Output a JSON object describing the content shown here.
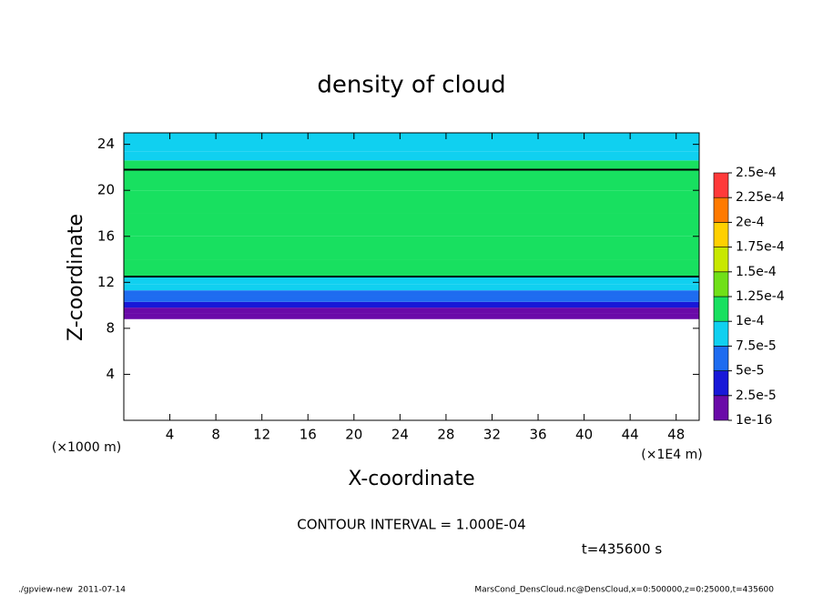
{
  "chart_data": {
    "type": "profile-heatmap",
    "title": "density of cloud",
    "x_label": "X-coordinate",
    "y_label": "Z-coordinate",
    "x_unit": "(×1E4 m)",
    "y_unit": "(×1000 m)",
    "xlim": [
      0,
      50
    ],
    "ylim": [
      0,
      25
    ],
    "xticks": [
      4,
      8,
      12,
      16,
      20,
      24,
      28,
      32,
      36,
      40,
      44,
      48
    ],
    "yticks": [
      4,
      8,
      12,
      16,
      20,
      24
    ],
    "z": [
      8.8,
      9.3,
      9.8,
      10.3,
      10.8,
      11.3,
      11.8,
      12.5,
      14,
      16,
      18,
      20,
      21.8,
      22.6,
      23.4
    ],
    "values": [
      1e-06,
      2e-05,
      4e-05,
      6e-05,
      7e-05,
      8e-05,
      9e-05,
      0.0001,
      0.000105,
      0.00011,
      0.00011,
      0.000108,
      0.0001,
      9e-05,
      8e-05
    ],
    "contour_level": 0.0001,
    "levels": [
      {
        "value": 1e-16,
        "label": "1e-16"
      },
      {
        "value": 2.5e-05,
        "label": "2.5e-5"
      },
      {
        "value": 5e-05,
        "label": "5e-5"
      },
      {
        "value": 7.5e-05,
        "label": "7.5e-5"
      },
      {
        "value": 0.0001,
        "label": "1e-4"
      },
      {
        "value": 0.000125,
        "label": "1.25e-4"
      },
      {
        "value": 0.00015,
        "label": "1.5e-4"
      },
      {
        "value": 0.000175,
        "label": "1.75e-4"
      },
      {
        "value": 0.0002,
        "label": "2e-4"
      },
      {
        "value": 0.000225,
        "label": "2.25e-4"
      },
      {
        "value": 0.00025,
        "label": "2.5e-4"
      }
    ],
    "level_colors": [
      "#6a0aa8",
      "#1818d8",
      "#1e6cf0",
      "#10d0f0",
      "#18e060",
      "#70e018",
      "#c8e800",
      "#ffd000",
      "#ff7a00",
      "#ff3a3a"
    ],
    "contour_interval_text": "CONTOUR INTERVAL = 1.000E-04",
    "time_text": "t=435600 s",
    "footer_left": "./gpview-new  2011-07-14",
    "footer_right": "MarsCond_DensCloud.nc@DensCloud,x=0:500000,z=0:25000,t=435600"
  }
}
